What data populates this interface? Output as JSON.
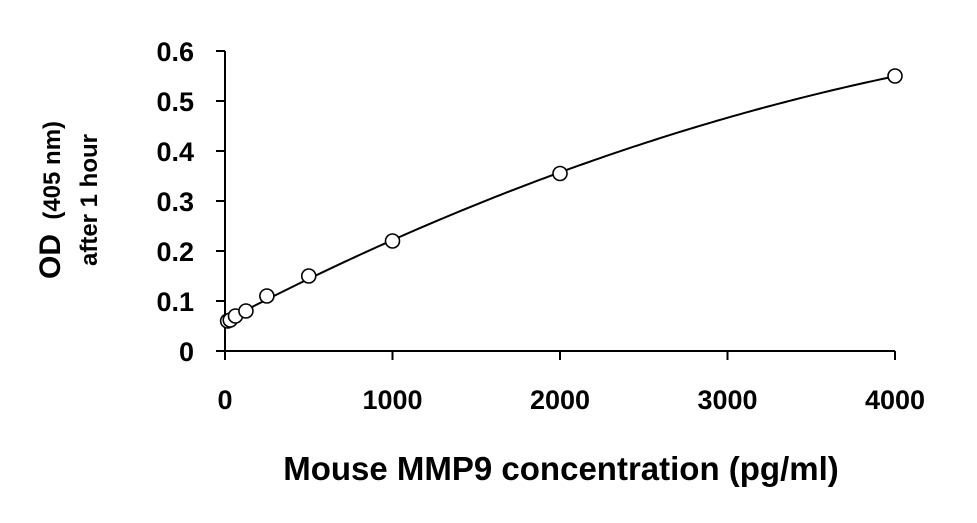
{
  "chart_data": {
    "type": "scatter",
    "xlabel": "Mouse MMP9 concentration (pg/ml)",
    "ylabel": {
      "main": "OD",
      "unit": "(405 nm)",
      "line2": "after 1 hour"
    },
    "xlim": [
      0,
      4000
    ],
    "ylim": [
      0,
      0.6
    ],
    "x_ticks": [
      0,
      1000,
      2000,
      3000,
      4000
    ],
    "x_tick_labels": [
      "0",
      "1000",
      "2000",
      "3000",
      "4000"
    ],
    "y_ticks": [
      0,
      0.1,
      0.2,
      0.3,
      0.4,
      0.5,
      0.6
    ],
    "y_tick_labels": [
      "0",
      "0.1",
      "0.2",
      "0.3",
      "0.4",
      "0.5",
      "0.6"
    ],
    "grid": false,
    "legend": "none",
    "marker": "open-circle",
    "trendline": "curve",
    "series": [
      {
        "x": [
          15.6,
          31.25,
          62.5,
          125,
          250,
          500,
          1000,
          2000,
          4000
        ],
        "y": [
          0.06,
          0.062,
          0.07,
          0.08,
          0.11,
          0.15,
          0.22,
          0.355,
          0.55
        ]
      }
    ],
    "colors": {
      "line": "#000000",
      "marker_fill": "#ffffff",
      "marker_stroke": "#000000"
    }
  }
}
